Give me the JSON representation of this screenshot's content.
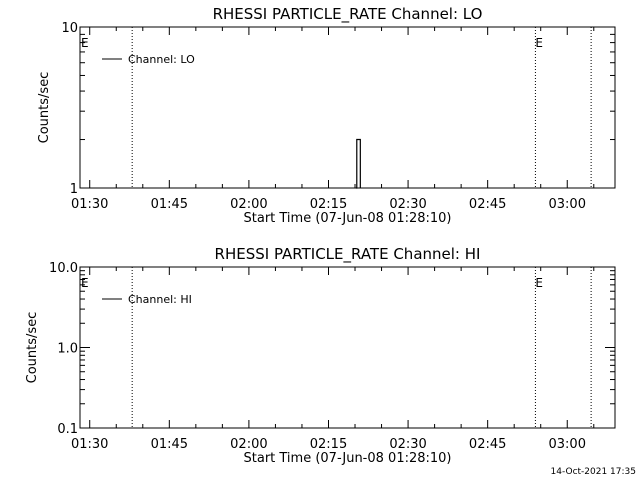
{
  "chart_data": [
    {
      "type": "line",
      "title": "RHESSI PARTICLE_RATE Channel: LO",
      "xlabel": "Start Time (07-Jun-08 01:28:10)",
      "ylabel": "Counts/sec",
      "yscale": "log",
      "ylim": [
        1,
        10
      ],
      "yticks": [
        1,
        10
      ],
      "ytick_labels": [
        "1",
        "10"
      ],
      "xlim": [
        "01:28:10",
        "03:09:00"
      ],
      "xticks": [
        "01:30",
        "01:45",
        "02:00",
        "02:15",
        "02:30",
        "02:45",
        "03:00"
      ],
      "legend": "top-left",
      "series": [
        {
          "name": "Channel: LO",
          "x": [
            "02:20:10",
            "02:20:20",
            "02:20:30",
            "02:20:40",
            "02:20:50",
            "02:21:00"
          ],
          "y": [
            1,
            2,
            2,
            2,
            2,
            1
          ]
        }
      ],
      "annotations": [
        {
          "text": "E",
          "x": "01:28:10"
        },
        {
          "text": "E",
          "x": "02:54:00"
        }
      ],
      "vlines": [
        "01:38:00",
        "02:54:00",
        "03:04:30"
      ]
    },
    {
      "type": "line",
      "title": "RHESSI PARTICLE_RATE Channel: HI",
      "xlabel": "Start Time (07-Jun-08 01:28:10)",
      "ylabel": "Counts/sec",
      "yscale": "log",
      "ylim": [
        0.1,
        10
      ],
      "yticks": [
        0.1,
        1,
        10
      ],
      "ytick_labels": [
        "0.1",
        "1.0",
        "10.0"
      ],
      "xlim": [
        "01:28:10",
        "03:09:00"
      ],
      "xticks": [
        "01:30",
        "01:45",
        "02:00",
        "02:15",
        "02:30",
        "02:45",
        "03:00"
      ],
      "legend": "top-left",
      "series": [
        {
          "name": "Channel: HI",
          "x": [],
          "y": []
        }
      ],
      "annotations": [
        {
          "text": "E",
          "x": "01:28:10"
        },
        {
          "text": "E",
          "x": "02:54:00"
        }
      ],
      "vlines": [
        "01:38:00",
        "02:54:00",
        "03:04:30"
      ]
    }
  ],
  "footer": {
    "timestamp": "14-Oct-2021 17:35"
  }
}
